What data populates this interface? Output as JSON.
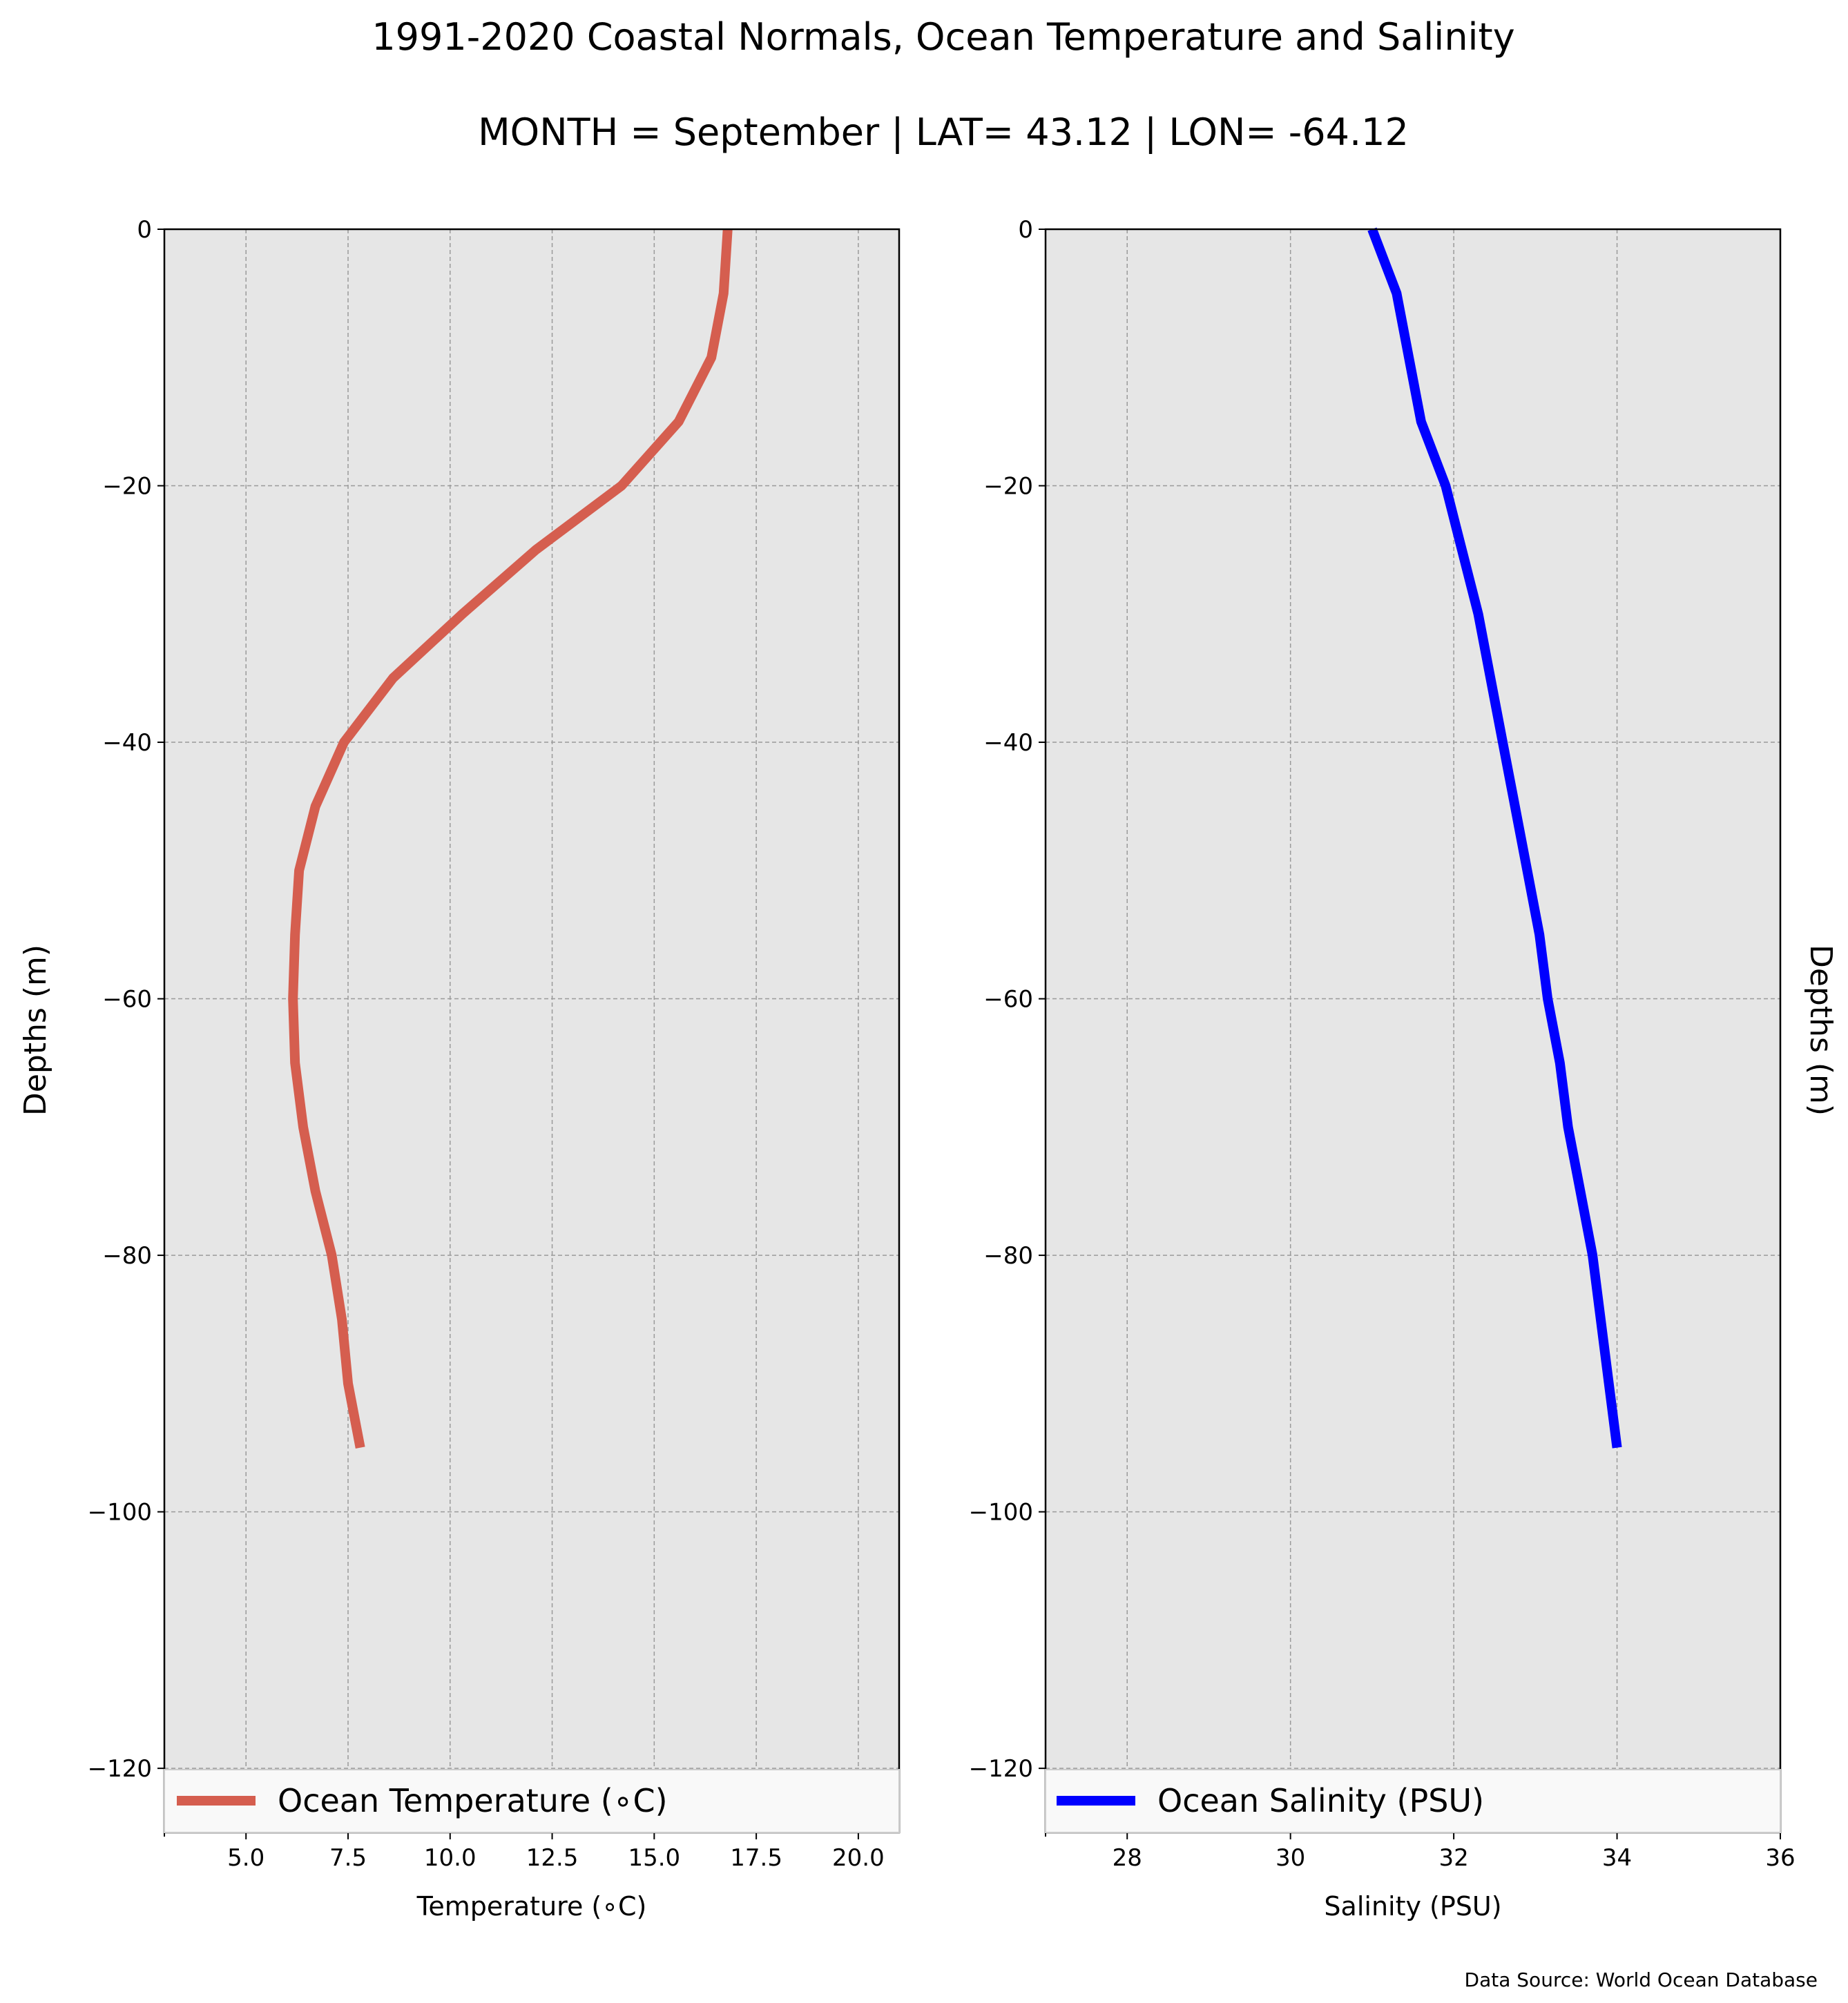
{
  "page": {
    "title": "1991-2020 Coastal Normals, Ocean Temperature and Salinity",
    "subtitle": "MONTH = September | LAT= 43.12 | LON= -64.12",
    "source": "Data Source: World Ocean Database"
  },
  "colors": {
    "panel_background": "#e6e6e6",
    "grid": "#9a9a9a",
    "temperature_line": "#d55e4f",
    "salinity_line": "#0000ff"
  },
  "chart_data": [
    {
      "type": "line",
      "xlabel": "Temperature (∘C)",
      "ylabel": "Depths (m)",
      "xlim": [
        3,
        21
      ],
      "ylim": [
        -125,
        0
      ],
      "xticks": [
        5.0,
        7.5,
        10.0,
        12.5,
        15.0,
        17.5,
        20.0
      ],
      "xtick_labels": [
        "5.0",
        "7.5",
        "10.0",
        "12.5",
        "15.0",
        "17.5",
        "20.0"
      ],
      "yticks": [
        0,
        -20,
        -40,
        -60,
        -80,
        -100,
        -120
      ],
      "ytick_labels": [
        "0",
        "−20",
        "−40",
        "−60",
        "−80",
        "−100",
        "−120"
      ],
      "grid": true,
      "legend_position": "bottom",
      "series": [
        {
          "name": "Ocean Temperature (∘C)",
          "color": "#d55e4f",
          "x": [
            16.8,
            16.7,
            16.4,
            15.6,
            14.2,
            12.1,
            10.3,
            8.6,
            7.4,
            6.7,
            6.3,
            6.2,
            6.15,
            6.2,
            6.4,
            6.7,
            7.1,
            7.35,
            7.5,
            7.8
          ],
          "y": [
            0,
            -5,
            -10,
            -15,
            -20,
            -25,
            -30,
            -35,
            -40,
            -45,
            -50,
            -55,
            -60,
            -65,
            -70,
            -75,
            -80,
            -85,
            -90,
            -95
          ]
        }
      ]
    },
    {
      "type": "line",
      "xlabel": "Salinity (PSU)",
      "ylabel": "Depths (m)",
      "xlim": [
        27,
        36
      ],
      "ylim": [
        -125,
        0
      ],
      "xticks": [
        28,
        30,
        32,
        34,
        36
      ],
      "xtick_labels": [
        "28",
        "30",
        "32",
        "34",
        "36"
      ],
      "yticks": [
        0,
        -20,
        -40,
        -60,
        -80,
        -100,
        -120
      ],
      "ytick_labels": [
        "0",
        "−20",
        "−40",
        "−60",
        "−80",
        "−100",
        "−120"
      ],
      "grid": true,
      "legend_position": "bottom",
      "series": [
        {
          "name": "Ocean Salinity (PSU)",
          "color": "#0000ff",
          "x": [
            31.0,
            31.3,
            31.45,
            31.6,
            31.9,
            32.1,
            32.3,
            32.45,
            32.6,
            32.75,
            32.9,
            33.05,
            33.15,
            33.3,
            33.4,
            33.55,
            33.7,
            33.8,
            33.9,
            34.0
          ],
          "y": [
            0,
            -5,
            -10,
            -15,
            -20,
            -25,
            -30,
            -35,
            -40,
            -45,
            -50,
            -55,
            -60,
            -65,
            -70,
            -75,
            -80,
            -85,
            -90,
            -95
          ]
        }
      ]
    }
  ]
}
